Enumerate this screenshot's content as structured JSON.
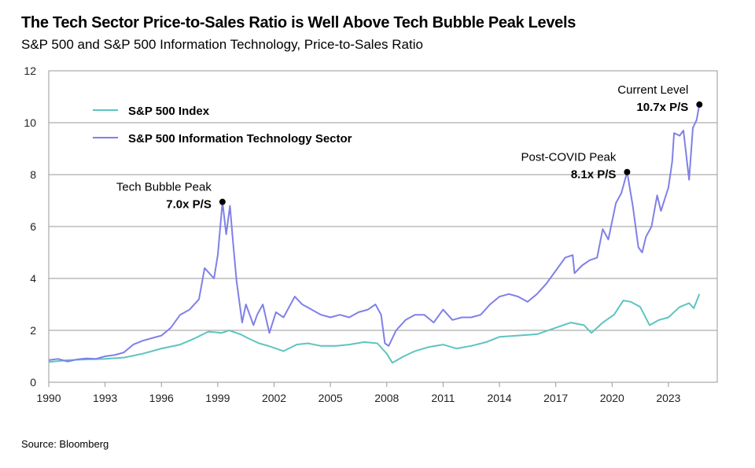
{
  "title": "The Tech Sector Price-to-Sales Ratio is Well Above Tech Bubble Peak Levels",
  "subtitle": "S&P 500 and S&P 500 Information Technology, Price-to-Sales Ratio",
  "source": "Source: Bloomberg",
  "chart_data": {
    "type": "line",
    "xlim": [
      1990,
      2025.6
    ],
    "ylim": [
      0,
      12
    ],
    "grid": true,
    "legend_position": "top-left",
    "x_ticks": [
      "1990",
      "1993",
      "1996",
      "1999",
      "2002",
      "2005",
      "2008",
      "2011",
      "2014",
      "2017",
      "2020",
      "2023"
    ],
    "y_ticks": [
      "0",
      "2",
      "4",
      "6",
      "8",
      "10",
      "12"
    ],
    "colors": {
      "sp500": "#5ec4c0",
      "tech": "#8080e8"
    },
    "series": [
      {
        "name": "S&P 500 Index",
        "key": "sp500",
        "x": [
          1990,
          1991,
          1992,
          1993,
          1994,
          1995,
          1996,
          1997,
          1997.8,
          1998.5,
          1999.2,
          1999.6,
          2000.2,
          2000.6,
          2001.2,
          2001.7,
          2002.5,
          2003.2,
          2003.8,
          2004.5,
          2005.3,
          2006,
          2006.8,
          2007.5,
          2008.0,
          2008.3,
          2008.9,
          2009.5,
          2010.2,
          2011,
          2011.7,
          2012.5,
          2013.3,
          2014,
          2015,
          2016,
          2017,
          2017.8,
          2018.5,
          2018.9,
          2019.5,
          2020.1,
          2020.6,
          2021.0,
          2021.5,
          2022,
          2022.5,
          2023,
          2023.6,
          2024.1,
          2024.35,
          2024.65
        ],
        "values": [
          0.78,
          0.85,
          0.88,
          0.9,
          0.95,
          1.1,
          1.3,
          1.45,
          1.7,
          1.95,
          1.9,
          2.0,
          1.85,
          1.7,
          1.5,
          1.4,
          1.2,
          1.45,
          1.5,
          1.4,
          1.4,
          1.45,
          1.55,
          1.5,
          1.1,
          0.75,
          1.0,
          1.2,
          1.35,
          1.45,
          1.3,
          1.4,
          1.55,
          1.75,
          1.8,
          1.85,
          2.1,
          2.3,
          2.2,
          1.9,
          2.3,
          2.6,
          3.15,
          3.1,
          2.9,
          2.2,
          2.4,
          2.5,
          2.9,
          3.05,
          2.85,
          3.4
        ]
      },
      {
        "name": "S&P 500 Information Technology Sector",
        "key": "tech",
        "x": [
          1990,
          1990.5,
          1991,
          1991.5,
          1992,
          1992.5,
          1993,
          1993.5,
          1994,
          1994.5,
          1995,
          1995.5,
          1996,
          1996.5,
          1997,
          1997.5,
          1998.0,
          1998.3,
          1998.8,
          1999.0,
          1999.25,
          1999.45,
          1999.65,
          1999.8,
          2000.0,
          2000.3,
          2000.5,
          2000.7,
          2000.9,
          2001.1,
          2001.4,
          2001.75,
          2002.1,
          2002.5,
          2002.8,
          2003.1,
          2003.5,
          2004,
          2004.5,
          2005,
          2005.5,
          2006,
          2006.5,
          2007,
          2007.4,
          2007.7,
          2007.9,
          2008.1,
          2008.5,
          2009,
          2009.5,
          2010,
          2010.5,
          2011,
          2011.5,
          2012,
          2012.5,
          2013,
          2013.5,
          2014,
          2014.5,
          2015,
          2015.5,
          2016,
          2016.5,
          2017,
          2017.5,
          2017.9,
          2018.0,
          2018.4,
          2018.8,
          2019.2,
          2019.5,
          2019.8,
          2020.2,
          2020.5,
          2020.8,
          2021.1,
          2021.4,
          2021.6,
          2021.8,
          2022.1,
          2022.4,
          2022.6,
          2023.0,
          2023.2,
          2023.3,
          2023.6,
          2023.8,
          2024.1,
          2024.3,
          2024.5,
          2024.65
        ],
        "values": [
          0.85,
          0.9,
          0.8,
          0.88,
          0.92,
          0.9,
          1.0,
          1.05,
          1.15,
          1.45,
          1.6,
          1.7,
          1.8,
          2.1,
          2.6,
          2.8,
          3.2,
          4.4,
          4.0,
          4.9,
          6.95,
          5.7,
          6.8,
          5.5,
          3.9,
          2.3,
          3.0,
          2.6,
          2.2,
          2.6,
          3.0,
          1.9,
          2.7,
          2.5,
          2.9,
          3.3,
          3.0,
          2.8,
          2.6,
          2.5,
          2.6,
          2.5,
          2.7,
          2.8,
          3.0,
          2.6,
          1.5,
          1.4,
          2.0,
          2.4,
          2.6,
          2.6,
          2.3,
          2.8,
          2.4,
          2.5,
          2.5,
          2.6,
          3.0,
          3.3,
          3.4,
          3.3,
          3.1,
          3.4,
          3.8,
          4.3,
          4.8,
          4.9,
          4.2,
          4.5,
          4.7,
          4.8,
          5.9,
          5.5,
          6.9,
          7.3,
          8.1,
          6.8,
          5.2,
          5.0,
          5.6,
          6.0,
          7.2,
          6.6,
          7.5,
          8.5,
          9.6,
          9.5,
          9.7,
          7.8,
          9.8,
          10.1,
          10.7
        ]
      }
    ],
    "annotations": [
      {
        "label": "Tech Bubble Peak",
        "value_label": "7.0x P/S",
        "x": 1999.25,
        "y": 6.95
      },
      {
        "label": "Post-COVID Peak",
        "value_label": "8.1x P/S",
        "x": 2020.8,
        "y": 8.1
      },
      {
        "label": "Current Level",
        "value_label": "10.7x P/S",
        "x": 2024.65,
        "y": 10.7
      }
    ]
  }
}
